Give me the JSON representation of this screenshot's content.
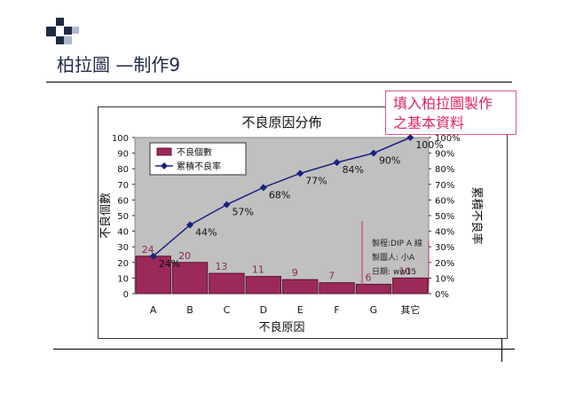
{
  "slide": {
    "title": "柏拉圖 —制作9",
    "callout_lines": [
      "填入柏拉圖製作",
      "之基本資料"
    ],
    "callout_color": "#e0245e",
    "accent_dark": "#1f2a44"
  },
  "chart_data": {
    "type": "bar",
    "title": "不良原因分佈",
    "xlabel": "不良原因",
    "ylabel": "不良個數",
    "y2label": "累積不良率",
    "categories": [
      "A",
      "B",
      "C",
      "D",
      "E",
      "F",
      "G",
      "其它"
    ],
    "ylim": [
      0,
      100
    ],
    "yticks": [
      "0",
      "10",
      "20",
      "30",
      "40",
      "50",
      "60",
      "70",
      "80",
      "90",
      "100"
    ],
    "y2lim": [
      0,
      100
    ],
    "y2ticks": [
      "0%",
      "10%",
      "20%",
      "30%",
      "40%",
      "50%",
      "60%",
      "70%",
      "80%",
      "90%",
      "100%"
    ],
    "legend_position": "top-left",
    "plot_background": "#c0c0c0",
    "series": [
      {
        "name": "不良個數",
        "type": "bar",
        "color": "#9b2a5a",
        "values": [
          24,
          20,
          13,
          11,
          9,
          7,
          6,
          10
        ],
        "labels": [
          "24",
          "20",
          "13",
          "11",
          "9",
          "7",
          "6",
          "10"
        ]
      },
      {
        "name": "累積不良率",
        "type": "line",
        "color": "#1a237e",
        "values": [
          24,
          44,
          57,
          68,
          77,
          84,
          90,
          100
        ],
        "labels": [
          "24%",
          "44%",
          "57%",
          "68%",
          "77%",
          "84%",
          "90%",
          "100%"
        ]
      }
    ],
    "annotation": {
      "lines": [
        "製程:DIP A 線",
        "製圖人: 小A",
        "日期: ww15"
      ]
    }
  }
}
